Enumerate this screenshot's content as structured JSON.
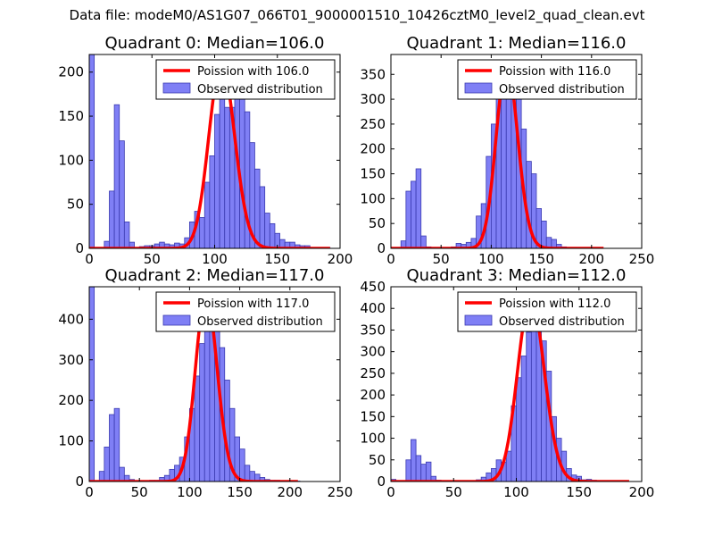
{
  "suptitle": "Data file: modeM0/AS1G07_066T01_9000001510_10426cztM0_level2_quad_clean.evt",
  "colors": {
    "bar_fill": "#7f7ff5",
    "bar_edge": "#3a3ab0",
    "line": "#ff0000",
    "axis": "#000000"
  },
  "chart_data": [
    {
      "type": "bar",
      "title": "Quadrant 0: Median=106.0",
      "xlim": [
        0,
        200
      ],
      "ylim": [
        0,
        220
      ],
      "xticks": [
        "0",
        "50",
        "100",
        "150",
        "200"
      ],
      "yticks": [
        "0",
        "50",
        "100",
        "150",
        "200"
      ],
      "xtick_values": [
        0,
        50,
        100,
        150,
        200
      ],
      "ytick_values": [
        0,
        50,
        100,
        150,
        200
      ],
      "legend": {
        "line_label": "Poission with 106.0",
        "bar_label": "Observed distribution",
        "position": "top-right"
      },
      "bin_width": 4,
      "bins": [
        [
          0,
          220
        ],
        [
          4,
          0
        ],
        [
          8,
          0
        ],
        [
          12,
          8
        ],
        [
          16,
          65
        ],
        [
          20,
          163
        ],
        [
          24,
          122
        ],
        [
          28,
          30
        ],
        [
          32,
          7
        ],
        [
          36,
          0
        ],
        [
          40,
          2
        ],
        [
          44,
          3
        ],
        [
          48,
          3
        ],
        [
          52,
          5
        ],
        [
          56,
          7
        ],
        [
          60,
          5
        ],
        [
          64,
          4
        ],
        [
          68,
          6
        ],
        [
          72,
          5
        ],
        [
          76,
          12
        ],
        [
          80,
          30
        ],
        [
          84,
          42
        ],
        [
          88,
          35
        ],
        [
          92,
          75
        ],
        [
          96,
          105
        ],
        [
          100,
          152
        ],
        [
          104,
          170
        ],
        [
          108,
          160
        ],
        [
          112,
          160
        ],
        [
          116,
          190
        ],
        [
          120,
          175
        ],
        [
          124,
          155
        ],
        [
          128,
          120
        ],
        [
          132,
          90
        ],
        [
          136,
          70
        ],
        [
          140,
          40
        ],
        [
          144,
          28
        ],
        [
          148,
          17
        ],
        [
          152,
          10
        ],
        [
          156,
          7
        ],
        [
          160,
          7
        ],
        [
          164,
          4
        ],
        [
          168,
          3
        ],
        [
          172,
          3
        ],
        [
          176,
          1
        ],
        [
          180,
          1
        ],
        [
          184,
          1
        ],
        [
          188,
          1
        ]
      ],
      "poisson": {
        "mean": 106.0,
        "peak": 210,
        "x_end": 192
      }
    },
    {
      "type": "bar",
      "title": "Quadrant 1: Median=116.0",
      "xlim": [
        0,
        250
      ],
      "ylim": [
        0,
        390
      ],
      "xticks": [
        "0",
        "50",
        "100",
        "150",
        "200",
        "250"
      ],
      "yticks": [
        "0",
        "50",
        "100",
        "150",
        "200",
        "250",
        "300",
        "350"
      ],
      "xtick_values": [
        0,
        50,
        100,
        150,
        200,
        250
      ],
      "ytick_values": [
        0,
        50,
        100,
        150,
        200,
        250,
        300,
        350
      ],
      "legend": {
        "line_label": "Poission with 116.0",
        "bar_label": "Observed distribution",
        "position": "top-right"
      },
      "bin_width": 5,
      "bins": [
        [
          0,
          0
        ],
        [
          5,
          2
        ],
        [
          10,
          15
        ],
        [
          15,
          115
        ],
        [
          20,
          135
        ],
        [
          25,
          160
        ],
        [
          30,
          25
        ],
        [
          35,
          3
        ],
        [
          40,
          2
        ],
        [
          45,
          0
        ],
        [
          50,
          0
        ],
        [
          55,
          2
        ],
        [
          60,
          3
        ],
        [
          65,
          10
        ],
        [
          70,
          8
        ],
        [
          75,
          12
        ],
        [
          80,
          20
        ],
        [
          85,
          65
        ],
        [
          90,
          90
        ],
        [
          95,
          185
        ],
        [
          100,
          250
        ],
        [
          105,
          300
        ],
        [
          110,
          305
        ],
        [
          115,
          370
        ],
        [
          120,
          335
        ],
        [
          125,
          355
        ],
        [
          130,
          240
        ],
        [
          135,
          175
        ],
        [
          140,
          150
        ],
        [
          145,
          80
        ],
        [
          150,
          55
        ],
        [
          155,
          22
        ],
        [
          160,
          18
        ],
        [
          165,
          8
        ],
        [
          170,
          3
        ],
        [
          175,
          2
        ],
        [
          180,
          2
        ],
        [
          185,
          1
        ],
        [
          190,
          1
        ],
        [
          195,
          0
        ],
        [
          200,
          0
        ],
        [
          205,
          1
        ]
      ],
      "poisson": {
        "mean": 116.0,
        "peak": 370,
        "x_end": 212
      }
    },
    {
      "type": "bar",
      "title": "Quadrant 2: Median=117.0",
      "xlim": [
        0,
        250
      ],
      "ylim": [
        0,
        480
      ],
      "xticks": [
        "0",
        "50",
        "100",
        "150",
        "200",
        "250"
      ],
      "yticks": [
        "0",
        "100",
        "200",
        "300",
        "400"
      ],
      "xtick_values": [
        0,
        50,
        100,
        150,
        200,
        250
      ],
      "ytick_values": [
        0,
        100,
        200,
        300,
        400
      ],
      "legend": {
        "line_label": "Poission with 117.0",
        "bar_label": "Observed distribution",
        "position": "top-right"
      },
      "bin_width": 5,
      "bins": [
        [
          0,
          480
        ],
        [
          5,
          0
        ],
        [
          10,
          25
        ],
        [
          15,
          85
        ],
        [
          20,
          165
        ],
        [
          25,
          180
        ],
        [
          30,
          35
        ],
        [
          35,
          15
        ],
        [
          40,
          5
        ],
        [
          45,
          0
        ],
        [
          50,
          0
        ],
        [
          55,
          0
        ],
        [
          60,
          3
        ],
        [
          65,
          3
        ],
        [
          70,
          10
        ],
        [
          75,
          15
        ],
        [
          80,
          30
        ],
        [
          85,
          40
        ],
        [
          90,
          60
        ],
        [
          95,
          110
        ],
        [
          100,
          180
        ],
        [
          105,
          260
        ],
        [
          110,
          340
        ],
        [
          115,
          420
        ],
        [
          120,
          440
        ],
        [
          125,
          410
        ],
        [
          130,
          330
        ],
        [
          135,
          250
        ],
        [
          140,
          180
        ],
        [
          145,
          110
        ],
        [
          150,
          80
        ],
        [
          155,
          40
        ],
        [
          160,
          25
        ],
        [
          165,
          18
        ],
        [
          170,
          10
        ],
        [
          175,
          5
        ],
        [
          180,
          3
        ],
        [
          185,
          3
        ],
        [
          190,
          2
        ],
        [
          195,
          1
        ],
        [
          200,
          1
        ],
        [
          205,
          1
        ]
      ],
      "poisson": {
        "mean": 117.0,
        "peak": 460,
        "x_end": 208
      }
    },
    {
      "type": "bar",
      "title": "Quadrant 3: Median=112.0",
      "xlim": [
        0,
        200
      ],
      "ylim": [
        0,
        450
      ],
      "xticks": [
        "0",
        "50",
        "100",
        "150",
        "200"
      ],
      "yticks": [
        "0",
        "50",
        "100",
        "150",
        "200",
        "250",
        "300",
        "350",
        "400",
        "450"
      ],
      "xtick_values": [
        0,
        50,
        100,
        150,
        200
      ],
      "ytick_values": [
        0,
        50,
        100,
        150,
        200,
        250,
        300,
        350,
        400,
        450
      ],
      "legend": {
        "line_label": "Poission with 112.0",
        "bar_label": "Observed distribution",
        "position": "top-right"
      },
      "bin_width": 4,
      "bins": [
        [
          0,
          5
        ],
        [
          4,
          0
        ],
        [
          8,
          0
        ],
        [
          12,
          50
        ],
        [
          16,
          97
        ],
        [
          20,
          60
        ],
        [
          24,
          40
        ],
        [
          28,
          45
        ],
        [
          32,
          12
        ],
        [
          36,
          3
        ],
        [
          40,
          2
        ],
        [
          44,
          0
        ],
        [
          48,
          0
        ],
        [
          52,
          0
        ],
        [
          56,
          0
        ],
        [
          60,
          0
        ],
        [
          64,
          0
        ],
        [
          68,
          4
        ],
        [
          72,
          10
        ],
        [
          76,
          20
        ],
        [
          80,
          30
        ],
        [
          84,
          50
        ],
        [
          88,
          45
        ],
        [
          92,
          70
        ],
        [
          96,
          175
        ],
        [
          100,
          240
        ],
        [
          104,
          290
        ],
        [
          108,
          345
        ],
        [
          112,
          420
        ],
        [
          116,
          400
        ],
        [
          120,
          325
        ],
        [
          124,
          255
        ],
        [
          128,
          150
        ],
        [
          132,
          100
        ],
        [
          136,
          70
        ],
        [
          140,
          30
        ],
        [
          144,
          15
        ],
        [
          148,
          12
        ],
        [
          152,
          4
        ],
        [
          156,
          5
        ],
        [
          160,
          3
        ],
        [
          164,
          2
        ],
        [
          168,
          1
        ],
        [
          172,
          1
        ],
        [
          176,
          1
        ],
        [
          180,
          0
        ],
        [
          184,
          1
        ]
      ],
      "poisson": {
        "mean": 112.0,
        "peak": 425,
        "x_end": 190
      }
    }
  ]
}
